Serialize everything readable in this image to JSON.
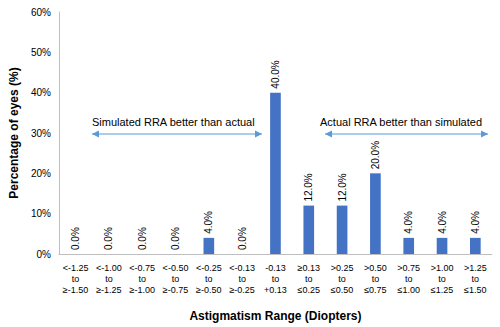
{
  "chart_data": {
    "type": "bar",
    "x_label": "Astigmatism Range (Diopters)",
    "y_label": "Percentage of eyes (%)",
    "categories": [
      "<-1.25\nto\n≥-1.50",
      "<-1.00\nto\n≥-1.25",
      "<-0.75\nto\n≥-1.00",
      "<-0.50\nto\n≥-0.75",
      "<-0.25\nto\n≥-0.50",
      "<-0.13\nto\n≥-0.25",
      "-0.13\nto\n+0.13",
      "≥0.13\nto\n≤0.25",
      ">0.25\nto\n≤0.50",
      ">0.50\nto\n≤0.75",
      ">0.75\nto\n≤1.00",
      ">1.00\nto\n≤1.25",
      ">1.25\nto\n≤1.50"
    ],
    "values": [
      0,
      0,
      0,
      0,
      4,
      0,
      40,
      12,
      12,
      20,
      4,
      4,
      4
    ],
    "value_labels": [
      "0.0%",
      "0.0%",
      "0.0%",
      "0.0%",
      "4.0%",
      "0.0%",
      "40.0%",
      "12.0%",
      "12.0%",
      "20.0%",
      "4.0%",
      "4.0%",
      "4.0%"
    ],
    "color": "#4472c4",
    "ylim": [
      0,
      60
    ],
    "yticks": [
      {
        "value": 0,
        "label": "0%"
      },
      {
        "value": 10,
        "label": "10%"
      },
      {
        "value": 20,
        "label": "20%"
      },
      {
        "value": 30,
        "label": "30%"
      },
      {
        "value": 40,
        "label": "40%"
      },
      {
        "value": 50,
        "label": "50%"
      },
      {
        "value": 60,
        "label": "60%"
      }
    ],
    "grid": false,
    "data_labels": true,
    "annotations": [
      "Simulated RRA better than actual",
      "Actual RRA better than simulated"
    ]
  }
}
